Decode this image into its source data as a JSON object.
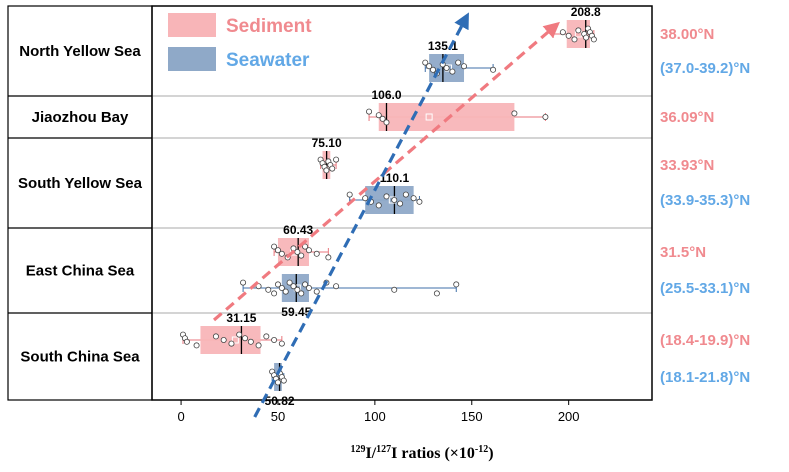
{
  "chart_data": {
    "type": "box",
    "x_axis": {
      "label_parts": [
        "129",
        "I/",
        "127",
        "I ratios (×10",
        "-12",
        ")"
      ],
      "min": -15,
      "max": 243,
      "ticks": [
        0,
        50,
        100,
        150,
        200
      ],
      "tick_labels": [
        "0",
        "50",
        "100",
        "150",
        "200"
      ]
    },
    "legend": {
      "position": "top-left",
      "entries": [
        {
          "name": "Sediment",
          "color": "#f08a8f",
          "fill": "#f8b5b8"
        },
        {
          "name": "Seawater",
          "color": "#62a8e6",
          "fill": "#8fa9c8"
        }
      ]
    },
    "regions": [
      "North Yellow Sea",
      "Jiaozhou Bay",
      "South Yellow Sea",
      "East China Sea",
      "South China Sea"
    ],
    "latitudes": [
      {
        "text": "38.00°N",
        "type": "Sediment"
      },
      {
        "text": "(37.0-39.2)°N",
        "type": "Seawater"
      },
      {
        "text": "36.09°N",
        "type": "Sediment"
      },
      {
        "text": "33.93°N",
        "type": "Sediment"
      },
      {
        "text": "(33.9-35.3)°N",
        "type": "Seawater"
      },
      {
        "text": "31.5°N",
        "type": "Sediment"
      },
      {
        "text": "(25.5-33.1)°N",
        "type": "Seawater"
      },
      {
        "text": "(18.4-19.9)°N",
        "type": "Sediment"
      },
      {
        "text": "(18.1-21.8)°N",
        "type": "Seawater"
      }
    ],
    "boxes": [
      {
        "region": "North Yellow Sea",
        "type": "Sediment",
        "median": 208.8,
        "median_label": "208.8",
        "q1": 199,
        "q3": 211,
        "whisker_low": 192,
        "whisker_high": 213,
        "mean": 205,
        "points": [
          192,
          197,
          200,
          203,
          205,
          208,
          209,
          210,
          211,
          212,
          213
        ]
      },
      {
        "region": "North Yellow Sea",
        "type": "Seawater",
        "median": 135.1,
        "median_label": "135.1",
        "q1": 128,
        "q3": 146,
        "whisker_low": 126,
        "whisker_high": 161,
        "mean": 138,
        "points": [
          126,
          128,
          130,
          132,
          135,
          137,
          140,
          143,
          146,
          161
        ]
      },
      {
        "region": "Jiaozhou Bay",
        "type": "Sediment",
        "median": 106.0,
        "median_label": "106.0",
        "q1": 102,
        "q3": 172,
        "whisker_low": 97,
        "whisker_high": 188,
        "mean": 128,
        "points": [
          97,
          102,
          104,
          106,
          172,
          188
        ]
      },
      {
        "region": "South Yellow Sea",
        "type": "Sediment",
        "median": 75.1,
        "median_label": "75.10",
        "q1": 73,
        "q3": 77,
        "whisker_low": 72,
        "whisker_high": 80,
        "mean": 75,
        "points": [
          72,
          73,
          74,
          75,
          76,
          77,
          78,
          80
        ]
      },
      {
        "region": "South Yellow Sea",
        "type": "Seawater",
        "median": 110.1,
        "median_label": "110.1",
        "q1": 95,
        "q3": 120,
        "whisker_low": 87,
        "whisker_high": 123,
        "mean": 109,
        "points": [
          87,
          95,
          98,
          102,
          106,
          110,
          113,
          116,
          120,
          123
        ]
      },
      {
        "region": "East China Sea",
        "type": "Sediment",
        "median": 60.43,
        "median_label": "60.43",
        "q1": 50,
        "q3": 66,
        "whisker_low": 48,
        "whisker_high": 76,
        "mean": 58,
        "points": [
          48,
          50,
          52,
          55,
          58,
          60,
          62,
          64,
          66,
          70,
          76
        ]
      },
      {
        "region": "East China Sea",
        "type": "Seawater",
        "median": 59.45,
        "median_label": "59.45",
        "q1": 52,
        "q3": 66,
        "whisker_low": 32,
        "whisker_high": 142,
        "mean": 60,
        "points": [
          32,
          40,
          45,
          48,
          50,
          52,
          54,
          56,
          58,
          60,
          62,
          64,
          66,
          70,
          75,
          80,
          110,
          132,
          142
        ]
      },
      {
        "region": "South China Sea",
        "type": "Sediment",
        "median": 31.15,
        "median_label": "31.15",
        "q1": 10,
        "q3": 41,
        "whisker_low": 1,
        "whisker_high": 52,
        "mean": 28,
        "points": [
          1,
          2,
          3,
          8,
          18,
          22,
          26,
          30,
          33,
          36,
          40,
          44,
          48,
          52
        ]
      },
      {
        "region": "South China Sea",
        "type": "Seawater",
        "median": 50.82,
        "median_label": "50.82",
        "q1": 48,
        "q3": 52,
        "whisker_low": 47,
        "whisker_high": 53,
        "mean": 50,
        "points": [
          47,
          48,
          49,
          50,
          51,
          52,
          53
        ]
      }
    ],
    "trends": [
      {
        "type": "Sediment",
        "from": [
          17,
          "South China Sea"
        ],
        "to": [
          193,
          "North Yellow Sea"
        ],
        "style": "dashed-arrow"
      },
      {
        "type": "Seawater",
        "from": [
          38,
          "South China Sea"
        ],
        "to": [
          147,
          "North Yellow Sea"
        ],
        "style": "dashed-arrow"
      }
    ]
  }
}
